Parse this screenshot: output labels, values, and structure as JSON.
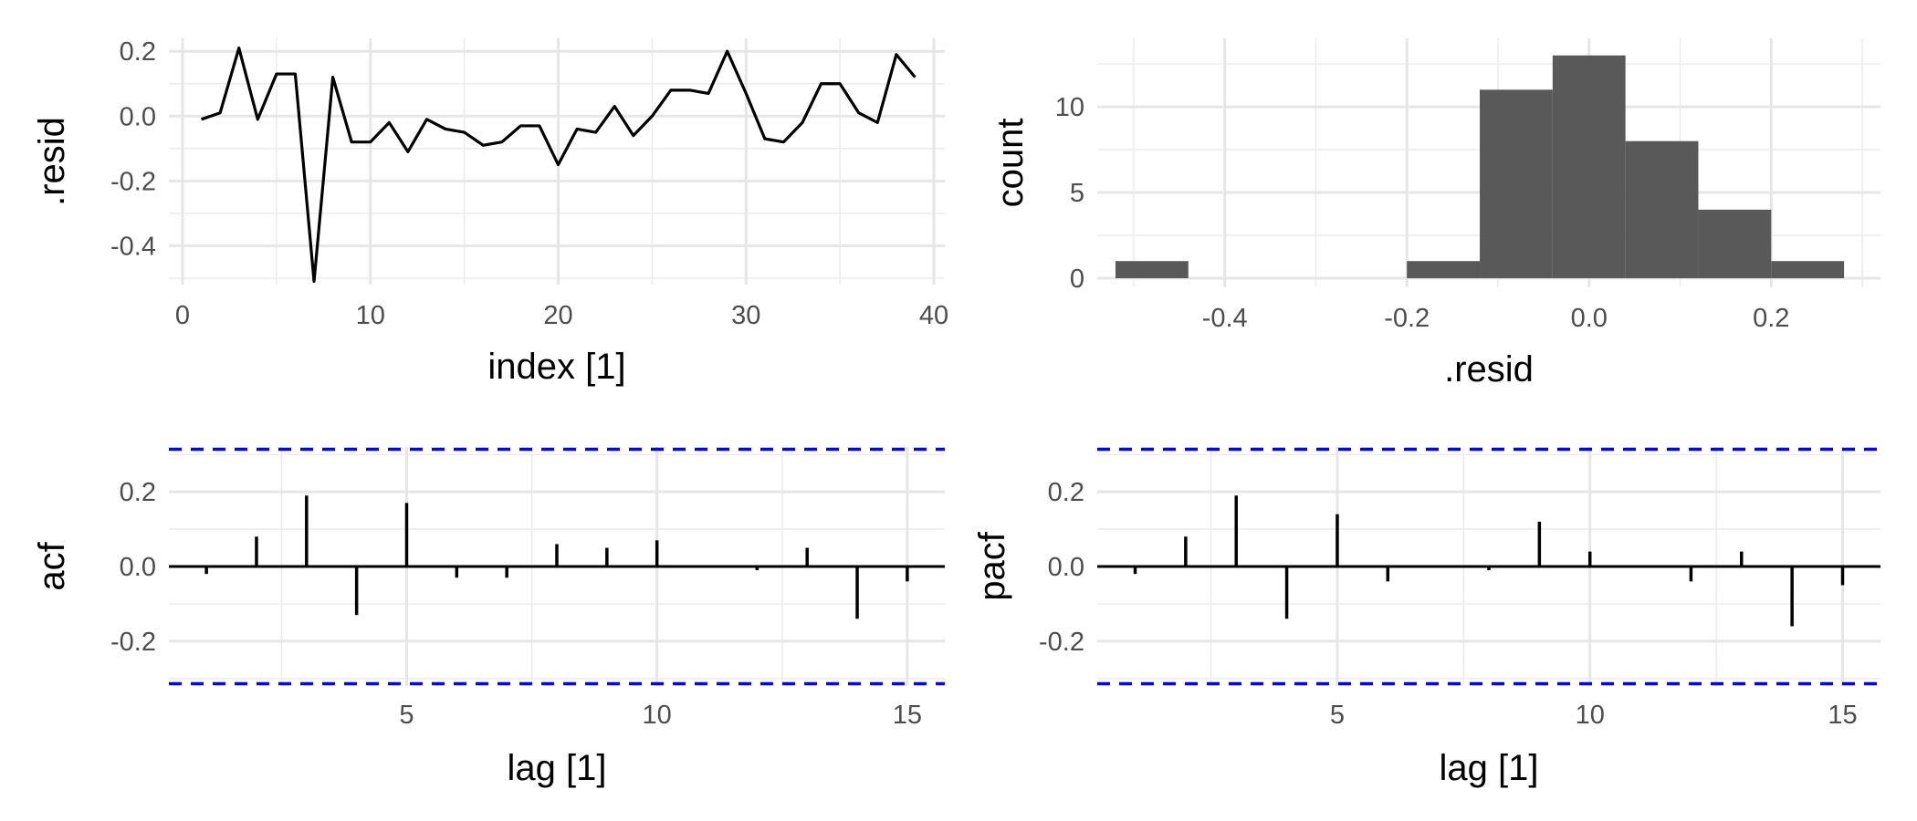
{
  "chart_data": [
    {
      "type": "line",
      "xlabel": "index [1]",
      "ylabel": ".resid",
      "xlim": [
        0,
        40
      ],
      "ylim": [
        -0.52,
        0.24
      ],
      "x_ticks": [
        0,
        10,
        20,
        30,
        40
      ],
      "x_tick_labels": [
        "0",
        "10",
        "20",
        "30",
        "40"
      ],
      "y_ticks": [
        0.2,
        0.0,
        -0.2,
        -0.4
      ],
      "y_tick_labels": [
        "0.2",
        "0.0",
        "-0.2",
        "-0.4"
      ],
      "grid": true,
      "x": [
        1,
        2,
        3,
        4,
        5,
        6,
        7,
        8,
        9,
        10,
        11,
        12,
        13,
        14,
        15,
        16,
        17,
        18,
        19,
        20,
        21,
        22,
        23,
        24,
        25,
        26,
        27,
        28,
        29,
        30,
        31,
        32,
        33,
        34,
        35,
        36,
        37,
        38,
        39
      ],
      "y": [
        -0.01,
        0.01,
        0.21,
        -0.01,
        0.13,
        0.13,
        -0.51,
        0.12,
        -0.08,
        -0.08,
        -0.02,
        -0.11,
        -0.01,
        -0.04,
        -0.05,
        -0.09,
        -0.08,
        -0.03,
        -0.03,
        -0.15,
        -0.04,
        -0.05,
        0.03,
        -0.06,
        0.0,
        0.08,
        0.08,
        0.07,
        0.2,
        0.07,
        -0.07,
        -0.08,
        -0.02,
        0.1,
        0.1,
        0.01,
        -0.02,
        0.19,
        0.12
      ],
      "color": "#000000"
    },
    {
      "type": "bar",
      "xlabel": ".resid",
      "ylabel": "count",
      "xlim": [
        -0.54,
        0.32
      ],
      "ylim": [
        0,
        13.2
      ],
      "x_ticks": [
        -0.4,
        -0.2,
        0.0,
        0.2
      ],
      "x_tick_labels": [
        "-0.4",
        "-0.2",
        "0.0",
        "0.2"
      ],
      "y_ticks": [
        0,
        5,
        10
      ],
      "y_tick_labels": [
        "0",
        "5",
        "10"
      ],
      "grid": true,
      "bins": [
        {
          "x0": -0.52,
          "x1": -0.44,
          "count": 1
        },
        {
          "x0": -0.44,
          "x1": -0.36,
          "count": 0
        },
        {
          "x0": -0.36,
          "x1": -0.28,
          "count": 0
        },
        {
          "x0": -0.28,
          "x1": -0.2,
          "count": 0
        },
        {
          "x0": -0.2,
          "x1": -0.12,
          "count": 1
        },
        {
          "x0": -0.12,
          "x1": -0.04,
          "count": 11
        },
        {
          "x0": -0.04,
          "x1": 0.04,
          "count": 13
        },
        {
          "x0": 0.04,
          "x1": 0.12,
          "count": 8
        },
        {
          "x0": 0.12,
          "x1": 0.2,
          "count": 4
        },
        {
          "x0": 0.2,
          "x1": 0.28,
          "count": 1
        }
      ],
      "color": "#595959"
    },
    {
      "type": "bar",
      "xlabel": "lag [1]",
      "ylabel": "acf",
      "xlim": [
        0.25,
        15.75
      ],
      "ylim": [
        -0.32,
        0.32
      ],
      "x_ticks": [
        5,
        10,
        15
      ],
      "x_tick_labels": [
        "5",
        "10",
        "15"
      ],
      "y_ticks": [
        0.2,
        0.0,
        -0.2
      ],
      "y_tick_labels": [
        "0.2",
        "0.0",
        "-0.2"
      ],
      "grid": true,
      "lags": [
        1,
        2,
        3,
        4,
        5,
        6,
        7,
        8,
        9,
        10,
        11,
        12,
        13,
        14,
        15
      ],
      "values": [
        -0.02,
        0.08,
        0.19,
        -0.13,
        0.17,
        -0.03,
        -0.03,
        0.06,
        0.05,
        0.07,
        0.0,
        -0.01,
        0.05,
        -0.14,
        -0.04
      ],
      "confidence_bound": 0.314,
      "bound_color": "#0000ff",
      "color": "#000000"
    },
    {
      "type": "bar",
      "xlabel": "lag [1]",
      "ylabel": "pacf",
      "xlim": [
        0.25,
        15.75
      ],
      "ylim": [
        -0.32,
        0.32
      ],
      "x_ticks": [
        5,
        10,
        15
      ],
      "x_tick_labels": [
        "5",
        "10",
        "15"
      ],
      "y_ticks": [
        0.2,
        0.0,
        -0.2
      ],
      "y_tick_labels": [
        "0.2",
        "0.0",
        "-0.2"
      ],
      "grid": true,
      "lags": [
        1,
        2,
        3,
        4,
        5,
        6,
        7,
        8,
        9,
        10,
        11,
        12,
        13,
        14,
        15
      ],
      "values": [
        -0.02,
        0.08,
        0.19,
        -0.14,
        0.14,
        -0.04,
        0.0,
        -0.01,
        0.12,
        0.04,
        0.0,
        -0.04,
        0.04,
        -0.16,
        -0.05
      ],
      "confidence_bound": 0.314,
      "bound_color": "#0000ff",
      "color": "#000000"
    }
  ]
}
